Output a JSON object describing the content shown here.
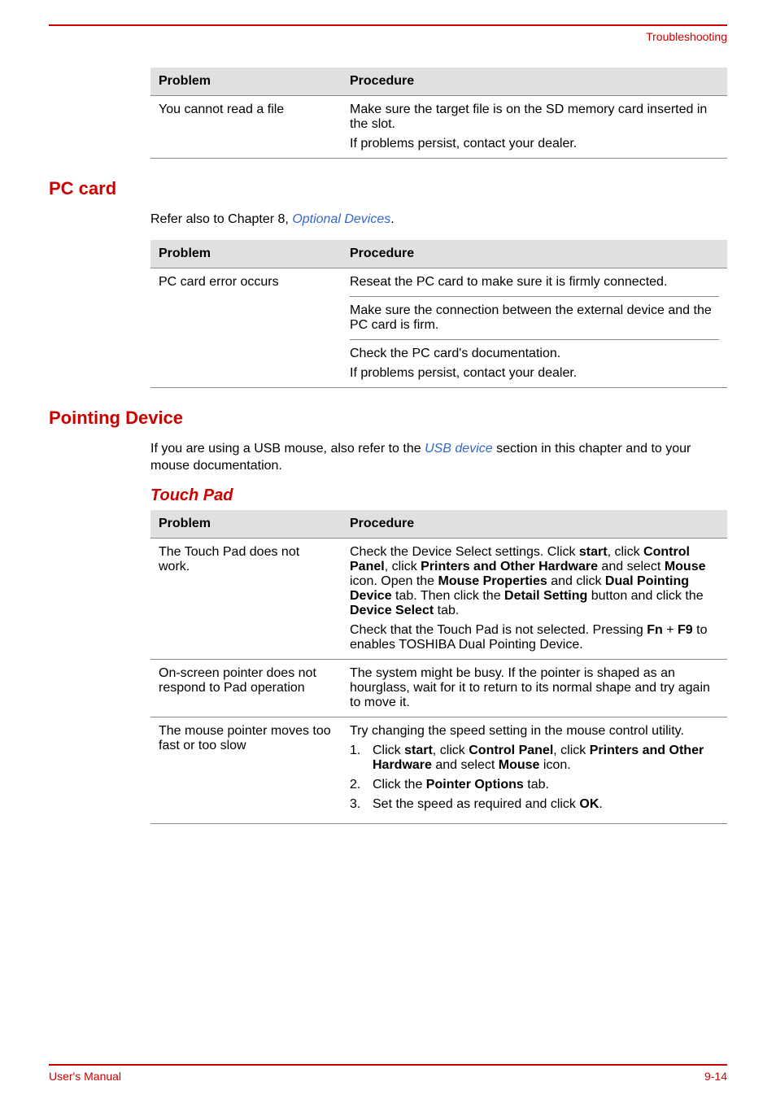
{
  "header": {
    "label": "Troubleshooting"
  },
  "colors": {
    "accent": "#cc0000",
    "link": "#3366cc",
    "table_header_bg": "#e0e0e0",
    "border": "#888888",
    "text": "#000000"
  },
  "table1": {
    "header_problem": "Problem",
    "header_procedure": "Procedure",
    "rows": [
      {
        "problem": "You cannot read a file",
        "procedure_lines": {
          "p1_prefix": "Make sure the target file is on the SD memory card inserted in the slot.",
          "p2": "If problems persist, contact your dealer."
        }
      }
    ]
  },
  "section_pc_card": {
    "heading": "PC card",
    "intro_prefix": "Refer also to Chapter 8, ",
    "intro_link": "Optional Devices",
    "intro_suffix": "."
  },
  "table2": {
    "header_problem": "Problem",
    "header_procedure": "Procedure",
    "row_problem": "PC card error occurs",
    "sub1": "Reseat the PC card to make sure it is firmly connected.",
    "sub2": "Make sure the connection between the external device and the PC card is firm.",
    "sub3_l1": "Check the PC card's documentation.",
    "sub3_l2": "If problems persist, contact your dealer."
  },
  "section_pointing": {
    "heading": "Pointing Device",
    "intro_prefix": "If you are using a USB mouse, also refer to the ",
    "intro_link": "USB device",
    "intro_suffix": " section in this chapter and to your mouse documentation.",
    "sub_heading": "Touch Pad"
  },
  "table3": {
    "header_problem": "Problem",
    "header_procedure": "Procedure",
    "row1_problem": "The Touch Pad does not work.",
    "row1_p1_t1": "Check the Device Select settings. Click ",
    "row1_p1_b1": "start",
    "row1_p1_t2": ", click ",
    "row1_p1_b2": "Control Panel",
    "row1_p1_t3": ", click ",
    "row1_p1_b3": "Printers and Other Hardware",
    "row1_p1_t4": " and select ",
    "row1_p1_b4": "Mouse",
    "row1_p1_t5": " icon. Open the ",
    "row1_p1_b5": "Mouse Properties",
    "row1_p1_t6": " and click ",
    "row1_p1_b6": "Dual Pointing Device",
    "row1_p1_t7": " tab. Then click the ",
    "row1_p1_b7": "Detail Setting",
    "row1_p1_t8": " button and click the ",
    "row1_p1_b8": "Device Select",
    "row1_p1_t9": " tab.",
    "row1_p2_t1": "Check that the Touch Pad is not selected. Pressing ",
    "row1_p2_b1": "Fn",
    "row1_p2_t2": " + ",
    "row1_p2_b2": "F9",
    "row1_p2_t3": " to enables TOSHIBA Dual Pointing Device.",
    "row2_problem": "On-screen pointer does not respond to Pad operation",
    "row2_procedure": "The system might be busy. If the pointer is shaped as an hourglass, wait for it to return to its normal shape and try again to move it.",
    "row3_problem": "The mouse pointer moves too fast or too slow",
    "row3_p1": "Try changing the speed setting in the mouse control utility.",
    "row3_step1_t1": "Click ",
    "row3_step1_b1": "start",
    "row3_step1_t2": ", click ",
    "row3_step1_b2": "Control Panel",
    "row3_step1_t3": ", click ",
    "row3_step1_b3": "Printers and Other Hardware",
    "row3_step1_t4": " and select ",
    "row3_step1_b4": "Mouse",
    "row3_step1_t5": " icon.",
    "row3_step2_t1": "Click the ",
    "row3_step2_b1": "Pointer Options",
    "row3_step2_t2": " tab.",
    "row3_step3_t1": "Set the speed as required and click ",
    "row3_step3_b1": "OK",
    "row3_step3_t2": "."
  },
  "footer": {
    "left": "User's Manual",
    "right": "9-14"
  }
}
